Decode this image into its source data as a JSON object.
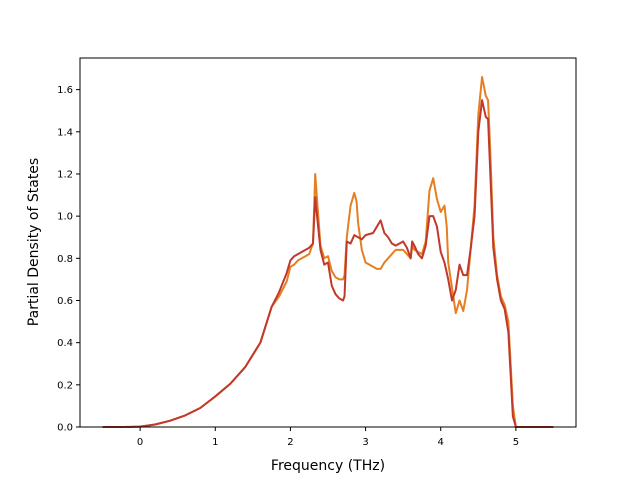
{
  "chart_data": {
    "type": "line",
    "xlabel": "Frequency (THz)",
    "ylabel": "Partial Density of States",
    "xlim": [
      -0.8,
      5.8
    ],
    "ylim": [
      0.0,
      1.75
    ],
    "xticks": [
      0,
      1,
      2,
      3,
      4,
      5
    ],
    "yticks": [
      0.0,
      0.2,
      0.4,
      0.6,
      0.8,
      1.0,
      1.2,
      1.4,
      1.6
    ],
    "xtick_labels": [
      "0",
      "1",
      "2",
      "3",
      "4",
      "5"
    ],
    "ytick_labels": [
      "0.0",
      "0.2",
      "0.4",
      "0.6",
      "0.8",
      "1.0",
      "1.2",
      "1.4",
      "1.6"
    ],
    "grid": false,
    "series": [
      {
        "color": "#e67e22",
        "points": [
          [
            -0.5,
            0
          ],
          [
            -0.2,
            0
          ],
          [
            0,
            0.002
          ],
          [
            0.2,
            0.012
          ],
          [
            0.4,
            0.03
          ],
          [
            0.6,
            0.055
          ],
          [
            0.8,
            0.09
          ],
          [
            1.0,
            0.145
          ],
          [
            1.2,
            0.205
          ],
          [
            1.4,
            0.285
          ],
          [
            1.6,
            0.4
          ],
          [
            1.75,
            0.57
          ],
          [
            1.85,
            0.62
          ],
          [
            1.95,
            0.69
          ],
          [
            2.0,
            0.76
          ],
          [
            2.05,
            0.77
          ],
          [
            2.1,
            0.79
          ],
          [
            2.2,
            0.81
          ],
          [
            2.25,
            0.82
          ],
          [
            2.3,
            0.87
          ],
          [
            2.33,
            1.2
          ],
          [
            2.36,
            1.05
          ],
          [
            2.4,
            0.86
          ],
          [
            2.45,
            0.8
          ],
          [
            2.5,
            0.81
          ],
          [
            2.55,
            0.74
          ],
          [
            2.6,
            0.71
          ],
          [
            2.65,
            0.7
          ],
          [
            2.7,
            0.7
          ],
          [
            2.72,
            0.72
          ],
          [
            2.75,
            0.9
          ],
          [
            2.8,
            1.05
          ],
          [
            2.85,
            1.11
          ],
          [
            2.88,
            1.07
          ],
          [
            2.9,
            0.97
          ],
          [
            2.95,
            0.84
          ],
          [
            3.0,
            0.78
          ],
          [
            3.05,
            0.77
          ],
          [
            3.1,
            0.76
          ],
          [
            3.15,
            0.75
          ],
          [
            3.2,
            0.75
          ],
          [
            3.25,
            0.78
          ],
          [
            3.3,
            0.8
          ],
          [
            3.35,
            0.82
          ],
          [
            3.4,
            0.84
          ],
          [
            3.5,
            0.84
          ],
          [
            3.55,
            0.82
          ],
          [
            3.6,
            0.8
          ],
          [
            3.62,
            0.86
          ],
          [
            3.65,
            0.84
          ],
          [
            3.7,
            0.83
          ],
          [
            3.75,
            0.82
          ],
          [
            3.8,
            0.88
          ],
          [
            3.85,
            1.12
          ],
          [
            3.9,
            1.18
          ],
          [
            3.95,
            1.08
          ],
          [
            4.0,
            1.02
          ],
          [
            4.05,
            1.05
          ],
          [
            4.08,
            0.95
          ],
          [
            4.1,
            0.78
          ],
          [
            4.15,
            0.66
          ],
          [
            4.2,
            0.54
          ],
          [
            4.25,
            0.6
          ],
          [
            4.3,
            0.55
          ],
          [
            4.35,
            0.65
          ],
          [
            4.4,
            0.85
          ],
          [
            4.45,
            1.05
          ],
          [
            4.5,
            1.48
          ],
          [
            4.55,
            1.66
          ],
          [
            4.6,
            1.57
          ],
          [
            4.63,
            1.55
          ],
          [
            4.66,
            1.3
          ],
          [
            4.7,
            0.9
          ],
          [
            4.75,
            0.72
          ],
          [
            4.8,
            0.62
          ],
          [
            4.85,
            0.58
          ],
          [
            4.9,
            0.5
          ],
          [
            4.93,
            0.3
          ],
          [
            4.96,
            0.1
          ],
          [
            5.0,
            0.0
          ],
          [
            5.5,
            0.0
          ]
        ]
      },
      {
        "color": "#c0392b",
        "points": [
          [
            -0.5,
            0
          ],
          [
            -0.2,
            0
          ],
          [
            0,
            0.002
          ],
          [
            0.2,
            0.012
          ],
          [
            0.4,
            0.03
          ],
          [
            0.6,
            0.055
          ],
          [
            0.8,
            0.09
          ],
          [
            1.0,
            0.145
          ],
          [
            1.2,
            0.205
          ],
          [
            1.4,
            0.285
          ],
          [
            1.6,
            0.4
          ],
          [
            1.75,
            0.57
          ],
          [
            1.85,
            0.64
          ],
          [
            1.95,
            0.73
          ],
          [
            2.0,
            0.79
          ],
          [
            2.05,
            0.81
          ],
          [
            2.1,
            0.82
          ],
          [
            2.2,
            0.84
          ],
          [
            2.25,
            0.85
          ],
          [
            2.3,
            0.87
          ],
          [
            2.33,
            1.09
          ],
          [
            2.36,
            0.98
          ],
          [
            2.4,
            0.84
          ],
          [
            2.45,
            0.77
          ],
          [
            2.5,
            0.78
          ],
          [
            2.55,
            0.67
          ],
          [
            2.6,
            0.63
          ],
          [
            2.65,
            0.61
          ],
          [
            2.7,
            0.6
          ],
          [
            2.72,
            0.62
          ],
          [
            2.75,
            0.88
          ],
          [
            2.8,
            0.87
          ],
          [
            2.85,
            0.91
          ],
          [
            2.9,
            0.9
          ],
          [
            2.95,
            0.89
          ],
          [
            3.0,
            0.91
          ],
          [
            3.1,
            0.92
          ],
          [
            3.15,
            0.95
          ],
          [
            3.2,
            0.98
          ],
          [
            3.25,
            0.92
          ],
          [
            3.3,
            0.9
          ],
          [
            3.35,
            0.87
          ],
          [
            3.4,
            0.86
          ],
          [
            3.5,
            0.88
          ],
          [
            3.55,
            0.85
          ],
          [
            3.6,
            0.8
          ],
          [
            3.62,
            0.88
          ],
          [
            3.65,
            0.86
          ],
          [
            3.7,
            0.82
          ],
          [
            3.75,
            0.8
          ],
          [
            3.8,
            0.86
          ],
          [
            3.85,
            1.0
          ],
          [
            3.9,
            1.0
          ],
          [
            3.95,
            0.95
          ],
          [
            4.0,
            0.83
          ],
          [
            4.05,
            0.78
          ],
          [
            4.1,
            0.7
          ],
          [
            4.15,
            0.6
          ],
          [
            4.2,
            0.65
          ],
          [
            4.25,
            0.77
          ],
          [
            4.3,
            0.72
          ],
          [
            4.35,
            0.72
          ],
          [
            4.4,
            0.85
          ],
          [
            4.45,
            1.0
          ],
          [
            4.5,
            1.4
          ],
          [
            4.55,
            1.55
          ],
          [
            4.6,
            1.47
          ],
          [
            4.63,
            1.46
          ],
          [
            4.66,
            1.2
          ],
          [
            4.7,
            0.85
          ],
          [
            4.75,
            0.7
          ],
          [
            4.8,
            0.6
          ],
          [
            4.85,
            0.56
          ],
          [
            4.9,
            0.45
          ],
          [
            4.93,
            0.25
          ],
          [
            4.96,
            0.05
          ],
          [
            5.0,
            0.0
          ],
          [
            5.5,
            0.0
          ]
        ]
      }
    ]
  }
}
